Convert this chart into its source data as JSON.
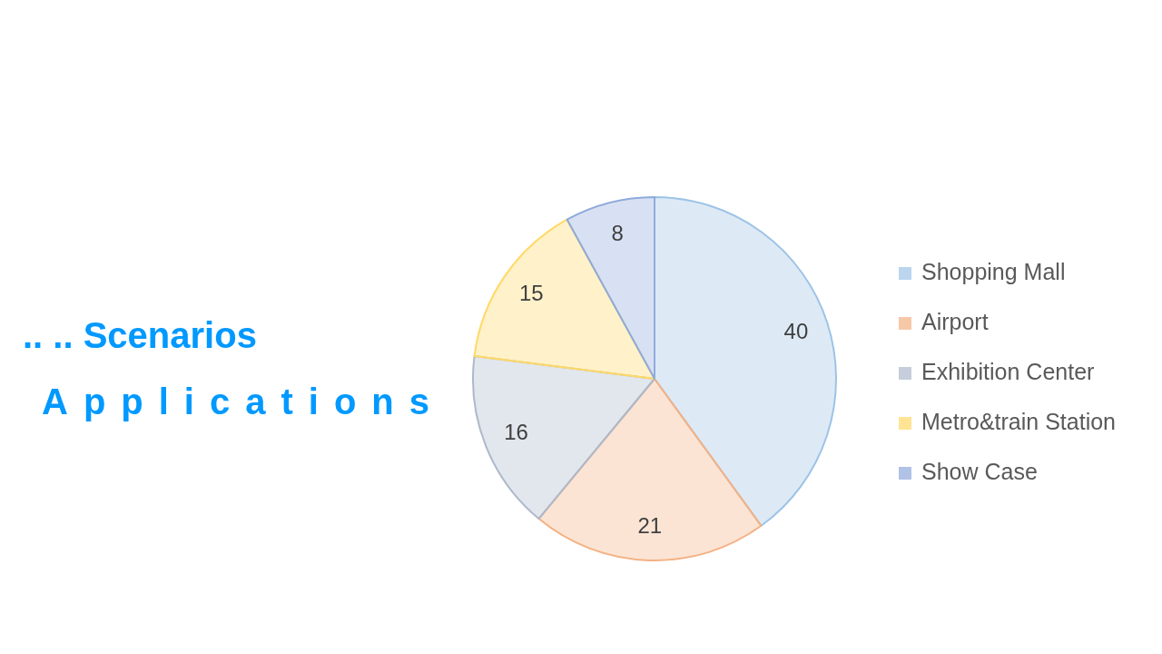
{
  "chart_data": {
    "type": "pie",
    "title": ".. .. Scenarios",
    "subtitle": "Applications",
    "categories": [
      "Shopping Mall",
      "Airport",
      "Exhibition Center",
      "Metro&train Station",
      "Show Case"
    ],
    "values": [
      40,
      21,
      16,
      15,
      8
    ],
    "colors": [
      "#9dc3e6",
      "#f4b183",
      "#adb9ca",
      "#ffd966",
      "#8faadc"
    ],
    "data_labels": true,
    "legend": "right"
  }
}
